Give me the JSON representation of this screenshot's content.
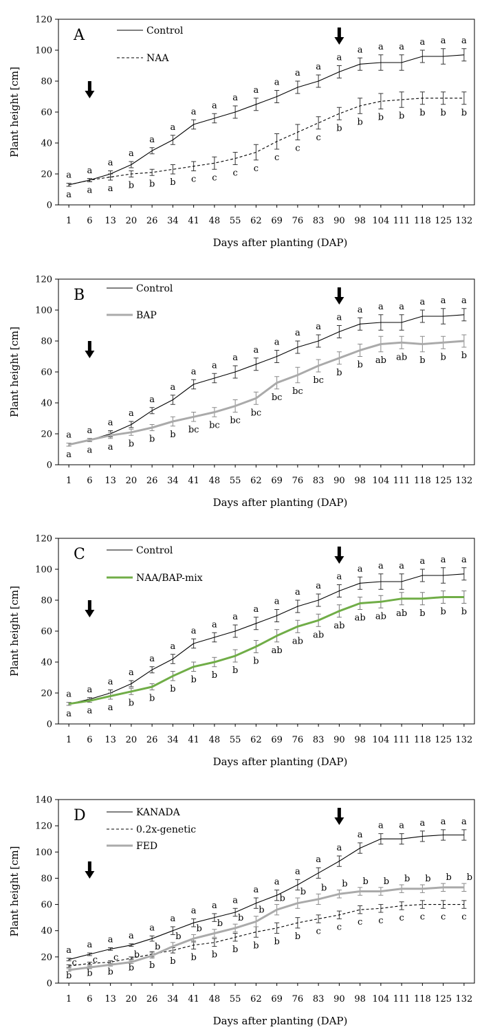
{
  "chart_data": [
    {
      "type": "line",
      "panel": "A",
      "xlabel": "Days after planting (DAP)",
      "ylabel": "Plant height [cm]",
      "ylim": [
        0,
        120
      ],
      "yticks": [
        "0",
        "20",
        "40",
        "60",
        "80",
        "100",
        "120"
      ],
      "categories": [
        "1",
        "6",
        "13",
        "20",
        "26",
        "34",
        "41",
        "48",
        "55",
        "62",
        "69",
        "76",
        "83",
        "90",
        "98",
        "104",
        "111",
        "118",
        "125",
        "132"
      ],
      "arrows_at": [
        "6",
        "90"
      ],
      "series": [
        {
          "name": "Control",
          "style": "solid",
          "color": "#000000",
          "values": [
            13,
            16,
            20,
            26,
            35,
            42,
            52,
            56,
            60,
            65,
            70,
            76,
            80,
            86,
            91,
            92,
            92,
            96,
            96,
            97
          ],
          "errors": [
            1,
            1,
            2,
            2,
            2,
            3,
            3,
            3,
            4,
            4,
            4,
            4,
            4,
            4,
            4,
            5,
            5,
            4,
            5,
            4
          ],
          "letters": [
            "a",
            "a",
            "a",
            "a",
            "a",
            "a",
            "a",
            "a",
            "a",
            "a",
            "a",
            "a",
            "a",
            "a",
            "a",
            "a",
            "a",
            "a",
            "a",
            "a"
          ]
        },
        {
          "name": "NAA",
          "style": "dashed",
          "color": "#000000",
          "values": [
            13,
            16,
            18,
            20,
            21,
            23,
            25,
            27,
            30,
            34,
            41,
            47,
            53,
            59,
            64,
            67,
            68,
            69,
            69,
            69
          ],
          "errors": [
            1,
            1,
            2,
            2,
            2,
            3,
            3,
            4,
            4,
            5,
            5,
            5,
            4,
            4,
            5,
            5,
            5,
            4,
            4,
            4
          ],
          "letters": [
            "a",
            "a",
            "a",
            "b",
            "b",
            "b",
            "c",
            "c",
            "c",
            "c",
            "c",
            "c",
            "c",
            "b",
            "b",
            "b",
            "b",
            "b",
            "b",
            "b"
          ]
        }
      ]
    },
    {
      "type": "line",
      "panel": "B",
      "xlabel": "Days after planting (DAP)",
      "ylabel": "Plant height [cm]",
      "ylim": [
        0,
        120
      ],
      "yticks": [
        "0",
        "20",
        "40",
        "60",
        "80",
        "100",
        "120"
      ],
      "categories": [
        "1",
        "6",
        "13",
        "20",
        "26",
        "34",
        "41",
        "48",
        "55",
        "62",
        "69",
        "76",
        "83",
        "90",
        "98",
        "104",
        "111",
        "118",
        "125",
        "132"
      ],
      "arrows_at": [
        "6",
        "90"
      ],
      "series": [
        {
          "name": "Control",
          "style": "solid",
          "color": "#000000",
          "values": [
            13,
            16,
            20,
            26,
            35,
            42,
            52,
            56,
            60,
            65,
            70,
            76,
            80,
            86,
            91,
            92,
            92,
            96,
            96,
            97
          ],
          "errors": [
            1,
            1,
            2,
            2,
            2,
            3,
            3,
            3,
            4,
            4,
            4,
            4,
            4,
            4,
            4,
            5,
            5,
            4,
            5,
            4
          ],
          "letters": [
            "a",
            "a",
            "a",
            "a",
            "a",
            "a",
            "a",
            "a",
            "a",
            "a",
            "a",
            "a",
            "a",
            "a",
            "a",
            "a",
            "a",
            "a",
            "a",
            "a"
          ]
        },
        {
          "name": "BAP",
          "style": "solid-thick",
          "color": "#aaaaaa",
          "values": [
            13,
            16,
            19,
            21,
            24,
            28,
            31,
            34,
            38,
            43,
            53,
            58,
            64,
            69,
            74,
            78,
            79,
            78,
            79,
            80
          ],
          "errors": [
            1,
            1,
            2,
            2,
            2,
            3,
            3,
            3,
            4,
            4,
            4,
            5,
            4,
            4,
            4,
            5,
            4,
            5,
            4,
            4
          ],
          "letters": [
            "a",
            "a",
            "a",
            "b",
            "b",
            "b",
            "bc",
            "bc",
            "bc",
            "bc",
            "bc",
            "bc",
            "bc",
            "b",
            "b",
            "ab",
            "ab",
            "b",
            "b",
            "b"
          ]
        }
      ]
    },
    {
      "type": "line",
      "panel": "C",
      "xlabel": "Days after planting (DAP)",
      "ylabel": "Plant height [cm]",
      "ylim": [
        0,
        120
      ],
      "yticks": [
        "0",
        "20",
        "40",
        "60",
        "80",
        "100",
        "120"
      ],
      "categories": [
        "1",
        "6",
        "13",
        "20",
        "26",
        "34",
        "41",
        "48",
        "55",
        "62",
        "69",
        "76",
        "83",
        "90",
        "98",
        "104",
        "111",
        "118",
        "125",
        "132"
      ],
      "arrows_at": [
        "6",
        "90"
      ],
      "series": [
        {
          "name": "Control",
          "style": "solid",
          "color": "#000000",
          "values": [
            13,
            16,
            20,
            26,
            35,
            42,
            52,
            56,
            60,
            65,
            70,
            76,
            80,
            86,
            91,
            92,
            92,
            96,
            96,
            97
          ],
          "errors": [
            1,
            1,
            2,
            2,
            2,
            3,
            3,
            3,
            4,
            4,
            4,
            4,
            4,
            4,
            4,
            5,
            5,
            4,
            5,
            4
          ],
          "letters": [
            "a",
            "a",
            "a",
            "a",
            "a",
            "a",
            "a",
            "a",
            "a",
            "a",
            "a",
            "a",
            "a",
            "a",
            "a",
            "a",
            "a",
            "a",
            "a",
            "a"
          ]
        },
        {
          "name": "NAA/BAP-mix",
          "style": "solid-thick",
          "color": "#70ad47",
          "values": [
            13,
            15,
            18,
            21,
            24,
            31,
            37,
            40,
            44,
            50,
            57,
            63,
            67,
            73,
            78,
            79,
            81,
            81,
            82,
            82
          ],
          "errors": [
            1,
            1,
            2,
            2,
            2,
            3,
            3,
            3,
            4,
            4,
            4,
            4,
            4,
            4,
            4,
            4,
            4,
            4,
            4,
            4
          ],
          "letters": [
            "a",
            "a",
            "a",
            "b",
            "b",
            "b",
            "b",
            "b",
            "b",
            "b",
            "ab",
            "ab",
            "ab",
            "ab",
            "ab",
            "ab",
            "ab",
            "b",
            "b",
            "b"
          ]
        }
      ]
    },
    {
      "type": "line",
      "panel": "D",
      "xlabel": "Days after planting (DAP)",
      "ylabel": "Plant height [cm]",
      "ylim": [
        0,
        140
      ],
      "yticks": [
        "0",
        "20",
        "40",
        "60",
        "80",
        "100",
        "120",
        "140"
      ],
      "categories": [
        "1",
        "6",
        "13",
        "20",
        "26",
        "34",
        "41",
        "48",
        "55",
        "62",
        "69",
        "76",
        "83",
        "90",
        "98",
        "104",
        "111",
        "118",
        "125",
        "132"
      ],
      "arrows_at": [
        "6",
        "90"
      ],
      "series": [
        {
          "name": "KANADA",
          "style": "solid",
          "color": "#000000",
          "values": [
            18,
            22,
            26,
            29,
            34,
            40,
            46,
            50,
            54,
            61,
            67,
            75,
            84,
            93,
            103,
            110,
            110,
            112,
            113,
            113
          ],
          "errors": [
            1,
            1,
            1,
            1,
            2,
            3,
            3,
            3,
            3,
            4,
            4,
            4,
            4,
            4,
            4,
            4,
            4,
            4,
            4,
            4
          ],
          "letters": [
            "a",
            "a",
            "a",
            "a",
            "a",
            "a",
            "a",
            "a",
            "a",
            "a",
            "a",
            "a",
            "a",
            "a",
            "a",
            "a",
            "a",
            "a",
            "a",
            "a"
          ]
        },
        {
          "name": "0.2x-genetic",
          "style": "dashed",
          "color": "#000000",
          "values": [
            13,
            15,
            16,
            19,
            22,
            25,
            29,
            31,
            35,
            39,
            42,
            46,
            49,
            52,
            56,
            57,
            59,
            60,
            60,
            60
          ],
          "errors": [
            1,
            1,
            1,
            1,
            2,
            2,
            3,
            3,
            3,
            4,
            4,
            4,
            3,
            3,
            3,
            3,
            3,
            3,
            3,
            3
          ],
          "letters": [
            "b",
            "b",
            "b",
            "b",
            "b",
            "b",
            "b",
            "b",
            "b",
            "b",
            "b",
            "b",
            "c",
            "c",
            "c",
            "c",
            "c",
            "c",
            "c",
            "c"
          ]
        },
        {
          "name": "FED",
          "style": "solid-thick",
          "color": "#aaaaaa",
          "values": [
            10,
            12,
            14,
            16,
            21,
            28,
            34,
            38,
            42,
            47,
            56,
            61,
            64,
            68,
            70,
            70,
            72,
            72,
            73,
            73
          ],
          "errors": [
            1,
            1,
            1,
            1,
            2,
            3,
            3,
            3,
            3,
            4,
            4,
            4,
            4,
            3,
            3,
            3,
            3,
            3,
            3,
            3
          ],
          "letters": [
            "c",
            "c",
            "c",
            "b",
            "b",
            "b",
            "b",
            "b",
            "b",
            "b",
            "b",
            "b",
            "b",
            "b",
            "b",
            "b",
            "b",
            "b",
            "b",
            "b"
          ]
        }
      ]
    }
  ]
}
